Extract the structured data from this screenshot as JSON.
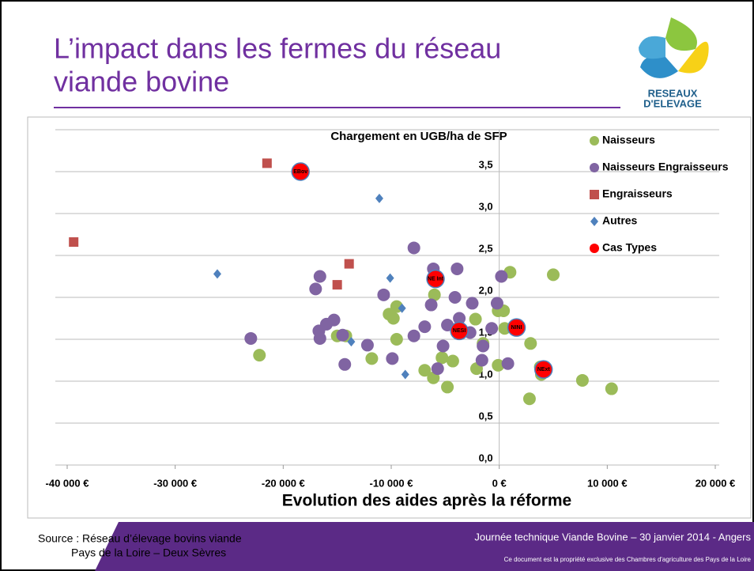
{
  "slide": {
    "title_lines": [
      "L’impact dans les fermes du réseau",
      "viande bovine"
    ],
    "logo": [
      "RESEAUX",
      "D'ELEVAGE"
    ],
    "source": [
      "Source : Réseau d’élevage bovins viande",
      "Pays de la Loire – Deux Sèvres"
    ],
    "footer": "Journée technique Viande Bovine – 30 janvier 2014 - Angers",
    "copyright": "Ce document est la propriété exclusive des Chambres d'agriculture des Pays de la Loire"
  },
  "chart_data": {
    "type": "scatter",
    "title": "Chargement en UGB/ha de SFP",
    "xlabel": "Evolution des aides après la réforme",
    "xlim": [
      -40000,
      20000
    ],
    "xticks": [
      {
        "value": -40000,
        "label": "-40 000 €"
      },
      {
        "value": -30000,
        "label": "-30 000 €"
      },
      {
        "value": -20000,
        "label": "-20 000 €"
      },
      {
        "value": -10000,
        "label": "-10 000 €"
      },
      {
        "value": 0,
        "label": "0 €"
      },
      {
        "value": 10000,
        "label": "10 000 €"
      },
      {
        "value": 20000,
        "label": "20 000 €"
      }
    ],
    "ylim": [
      0,
      4
    ],
    "yticks": [
      {
        "value": 0,
        "label": "0,0"
      },
      {
        "value": 0.5,
        "label": "0,5"
      },
      {
        "value": 1,
        "label": "1,0"
      },
      {
        "value": 1.5,
        "label": "1,5"
      },
      {
        "value": 2,
        "label": "2,0"
      },
      {
        "value": 2.5,
        "label": "2,5"
      },
      {
        "value": 3,
        "label": "3,0"
      },
      {
        "value": 3.5,
        "label": "3,5"
      }
    ],
    "grid": true,
    "legend": "right",
    "series": [
      {
        "name": "Naisseurs",
        "color": "#9bbb59",
        "marker": "circle",
        "x": [
          -22200,
          -9500,
          -9800,
          -10200,
          -9500,
          -11800,
          -15000,
          -14200,
          -6000,
          -6900,
          -6100,
          -4800,
          -4300,
          -5300,
          -2200,
          -2100,
          -1500,
          -100,
          400,
          500,
          -100,
          1000,
          5000,
          2900,
          2800,
          3800,
          3900,
          7700,
          10400
        ],
        "y": [
          1.31,
          1.89,
          1.75,
          1.8,
          1.5,
          1.27,
          1.54,
          1.54,
          2.03,
          1.13,
          1.04,
          0.93,
          1.24,
          1.28,
          1.74,
          1.15,
          1.45,
          1.84,
          1.84,
          1.63,
          1.19,
          2.3,
          2.27,
          1.45,
          0.79,
          1.17,
          1.08,
          1.01,
          0.91
        ]
      },
      {
        "name": "Naisseurs Engraisseurs",
        "color": "#8064a2",
        "marker": "circle",
        "x": [
          -23000,
          -16600,
          -17000,
          -16700,
          -16600,
          -16000,
          -15300,
          -14500,
          -14300,
          -12200,
          -10700,
          -9900,
          -7900,
          -7900,
          -6900,
          -6300,
          -6100,
          -5700,
          -5200,
          -4800,
          -4100,
          -3900,
          -3700,
          -2700,
          -2500,
          -1600,
          -1500,
          -700,
          -200,
          200,
          800
        ],
        "y": [
          1.51,
          2.25,
          2.1,
          1.6,
          1.51,
          1.68,
          1.73,
          1.55,
          1.2,
          1.43,
          2.03,
          1.27,
          2.59,
          1.54,
          1.65,
          1.91,
          2.34,
          1.15,
          1.42,
          1.67,
          2.0,
          2.34,
          1.75,
          1.58,
          1.93,
          1.25,
          1.42,
          1.63,
          1.93,
          2.25,
          1.21
        ]
      },
      {
        "name": "Engraisseurs",
        "color": "#c0504d",
        "marker": "square",
        "x": [
          -39400,
          -21500,
          -15000,
          -13900
        ],
        "y": [
          2.66,
          3.6,
          2.15,
          2.4
        ]
      },
      {
        "name": "Autres",
        "color": "#4f81bd",
        "marker": "diamond",
        "x": [
          -26100,
          -13700,
          -11100,
          -10100,
          -9000,
          -8700
        ],
        "y": [
          2.28,
          1.47,
          3.18,
          2.23,
          1.87,
          1.08
        ]
      },
      {
        "name": "Cas Types",
        "color": "#ff0000",
        "marker": "circle",
        "x": [
          -18400,
          -5900,
          -3700,
          1600,
          4100
        ],
        "y": [
          3.5,
          2.22,
          1.6,
          1.64,
          1.14
        ],
        "labels": [
          "EBov",
          "NE Int",
          "NESI",
          "NINI",
          "NExt"
        ]
      }
    ]
  }
}
